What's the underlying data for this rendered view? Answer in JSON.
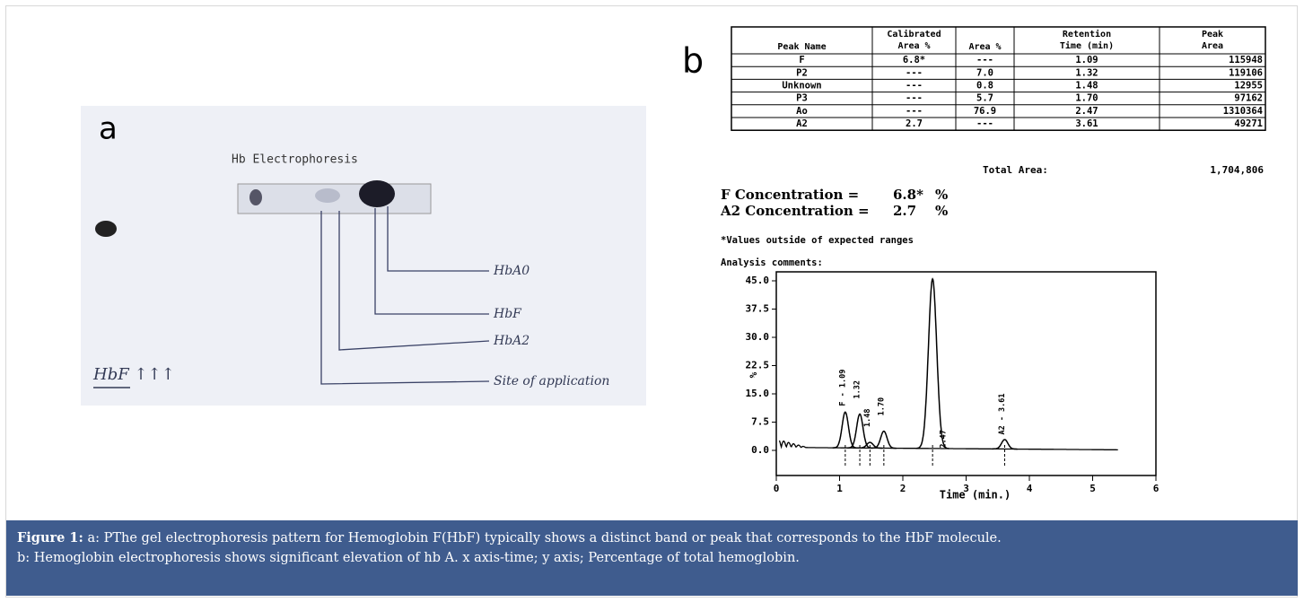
{
  "panel_a": {
    "label": "a",
    "title": "Hb Electrophoresis",
    "bands": [
      "HbA0",
      "HbF",
      "HbA2",
      "Site of application"
    ],
    "note": "HbF ↑↑↑"
  },
  "panel_b": {
    "label": "b",
    "table": {
      "header": [
        [
          "Peak Name"
        ],
        [
          "Calibrated",
          "Area %"
        ],
        [
          "Area %"
        ],
        [
          "Retention",
          "Time (min)"
        ],
        [
          "Peak",
          "Area"
        ]
      ],
      "rows": [
        [
          "F",
          "6.8*",
          "---",
          "1.09",
          "115948"
        ],
        [
          "P2",
          "---",
          "7.0",
          "1.32",
          "119106"
        ],
        [
          "Unknown",
          "---",
          "0.8",
          "1.48",
          "12955"
        ],
        [
          "P3",
          "---",
          "5.7",
          "1.70",
          "97162"
        ],
        [
          "Ao",
          "---",
          "76.9",
          "2.47",
          "1310364"
        ],
        [
          "A2",
          "2.7",
          "---",
          "3.61",
          "49271"
        ]
      ]
    },
    "total_area": {
      "label": "Total Area:",
      "value": "1,704,806"
    },
    "concentrations": [
      {
        "label": "F Concentration =",
        "value": "6.8*",
        "unit": "%"
      },
      {
        "label": "A2 Concentration =",
        "value": "2.7",
        "unit": "%"
      }
    ],
    "footnote": "*Values outside of expected ranges",
    "comments": "Analysis comments:",
    "chromatogram": {
      "type": "line",
      "xlabel": "Time (min.)",
      "ylabel": "%",
      "xlim": [
        0,
        6
      ],
      "ylim": [
        0,
        45
      ],
      "xticks": [
        0,
        1,
        2,
        3,
        4,
        5,
        6
      ],
      "yticks": [
        {
          "value": 0,
          "label": "0.0"
        },
        {
          "value": 7.5,
          "label": "7.5"
        },
        {
          "value": 15,
          "label": "15.0"
        },
        {
          "value": 22.5,
          "label": "22.5"
        },
        {
          "value": 30,
          "label": "30.0"
        },
        {
          "value": 37.5,
          "label": "37.5"
        },
        {
          "value": 45,
          "label": "45.0"
        }
      ],
      "peaks": {
        "labels": [
          "F - 1.09",
          "1.32",
          "1.48",
          "1.70",
          "2.47",
          "A2 - 3.61"
        ],
        "x": [
          1.09,
          1.32,
          1.48,
          1.7,
          2.47,
          3.61
        ],
        "values": [
          9.5,
          9,
          1.5,
          4.5,
          45,
          2.5
        ]
      }
    }
  },
  "caption": {
    "label": "Figure 1:",
    "lines": [
      "a: PThe gel electrophoresis pattern for Hemoglobin F(HbF) typically shows a distinct band or peak that corresponds to the HbF molecule.",
      "b: Hemoglobin electrophoresis shows significant elevation of hb A. x axis-time; y axis; Percentage of total hemoglobin."
    ]
  }
}
